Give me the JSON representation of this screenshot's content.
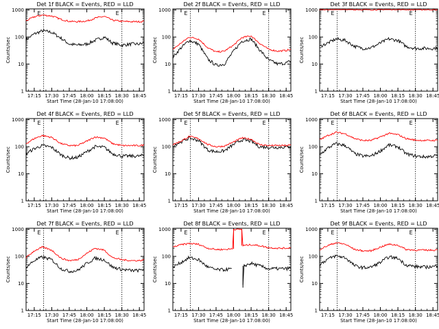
{
  "colors": {
    "events": "#000000",
    "lld": "#ff0000",
    "marker": "#000000"
  },
  "chart_data": [
    {
      "type": "line",
      "title": "Det 1f BLACK = Events, RED = LLD",
      "xlabel": "Start Time (28-Jan-10 17:08:00)",
      "ylabel": "Counts/sec",
      "yscale": "log",
      "ylim": [
        1,
        1000
      ],
      "x_ticks": [
        "17:15",
        "17:30",
        "17:45",
        "18:00",
        "18:15",
        "18:30",
        "18:45"
      ],
      "y_ticks": [
        "1",
        "10",
        "100",
        "1000"
      ],
      "markers": [
        "E",
        "E"
      ],
      "series": [
        {
          "name": "BLACK = Events",
          "color": "#000000",
          "x": [
            "17:08",
            "17:15",
            "17:22",
            "17:30",
            "17:38",
            "17:45",
            "17:52",
            "18:00",
            "18:07",
            "18:15",
            "18:22",
            "18:30",
            "18:38",
            "18:45",
            "18:49"
          ],
          "values": [
            80,
            130,
            170,
            150,
            90,
            55,
            50,
            55,
            75,
            100,
            60,
            50,
            55,
            55,
            60
          ]
        },
        {
          "name": "RED = LLD",
          "color": "#ff0000",
          "x": [
            "17:08",
            "17:15",
            "17:22",
            "17:30",
            "17:38",
            "17:45",
            "17:52",
            "18:00",
            "18:07",
            "18:15",
            "18:22",
            "18:30",
            "18:38",
            "18:45",
            "18:49"
          ],
          "values": [
            400,
            560,
            650,
            600,
            450,
            380,
            370,
            390,
            500,
            580,
            420,
            380,
            370,
            370,
            380
          ]
        }
      ]
    },
    {
      "type": "line",
      "title": "Det 2f BLACK = Events, RED = LLD",
      "xlabel": "Start Time (28-Jan-10 17:08:00)",
      "ylabel": "Counts/sec",
      "yscale": "log",
      "ylim": [
        1,
        1000
      ],
      "x_ticks": [
        "17:15",
        "17:30",
        "17:45",
        "18:00",
        "18:15",
        "18:30",
        "18:45"
      ],
      "y_ticks": [
        "1",
        "10",
        "100",
        "1000"
      ],
      "markers": [
        "E",
        "E"
      ],
      "series": [
        {
          "name": "BLACK = Events",
          "color": "#000000",
          "x": [
            "17:08",
            "17:15",
            "17:22",
            "17:30",
            "17:38",
            "17:45",
            "17:52",
            "18:00",
            "18:07",
            "18:15",
            "18:22",
            "18:30",
            "18:38",
            "18:45",
            "18:49"
          ],
          "values": [
            18,
            40,
            75,
            55,
            15,
            9,
            10,
            30,
            70,
            85,
            35,
            14,
            10,
            11,
            13
          ]
        },
        {
          "name": "RED = LLD",
          "color": "#ff0000",
          "x": [
            "17:08",
            "17:15",
            "17:22",
            "17:30",
            "17:38",
            "17:45",
            "17:52",
            "18:00",
            "18:07",
            "18:15",
            "18:22",
            "18:30",
            "18:38",
            "18:45",
            "18:49"
          ],
          "values": [
            35,
            60,
            100,
            85,
            40,
            28,
            30,
            50,
            95,
            110,
            60,
            35,
            30,
            32,
            35
          ]
        }
      ]
    },
    {
      "type": "line",
      "title": "Det 3f BLACK = Events, RED = LLD",
      "xlabel": "Start Time (28-Jan-10 17:08:00)",
      "ylabel": "Counts/sec",
      "yscale": "log",
      "ylim": [
        1,
        1000
      ],
      "x_ticks": [
        "17:15",
        "17:30",
        "17:45",
        "18:00",
        "18:15",
        "18:30",
        "18:45"
      ],
      "y_ticks": [
        "1",
        "10",
        "100",
        "1000"
      ],
      "markers": [
        "E",
        "E"
      ],
      "series": [
        {
          "name": "BLACK = Events",
          "color": "#000000",
          "x": [
            "17:08",
            "17:15",
            "17:22",
            "17:30",
            "17:38",
            "17:45",
            "17:52",
            "18:00",
            "18:07",
            "18:15",
            "18:22",
            "18:30",
            "18:38",
            "18:45",
            "18:49"
          ],
          "values": [
            45,
            60,
            85,
            75,
            45,
            38,
            40,
            60,
            85,
            75,
            45,
            38,
            38,
            38,
            40
          ]
        },
        {
          "name": "RED = LLD",
          "color": "#ff0000",
          "x": [
            "17:08",
            "17:15",
            "17:22",
            "17:30",
            "17:38",
            "17:45",
            "17:52",
            "18:00",
            "18:07",
            "18:15",
            "18:22",
            "18:30",
            "18:38",
            "18:45",
            "18:49"
          ],
          "values": [
            1050,
            1060,
            1080,
            1070,
            1050,
            1040,
            1040,
            1050,
            1070,
            1070,
            1050,
            1040,
            1040,
            1040,
            1040
          ]
        }
      ]
    },
    {
      "type": "line",
      "title": "Det 4f BLACK = Events, RED = LLD",
      "xlabel": "Start Time (28-Jan-10 17:08:00)",
      "ylabel": "Counts/sec",
      "yscale": "log",
      "ylim": [
        1,
        1000
      ],
      "x_ticks": [
        "17:15",
        "17:30",
        "17:45",
        "18:00",
        "18:15",
        "18:30",
        "18:45"
      ],
      "y_ticks": [
        "1",
        "10",
        "100",
        "1000"
      ],
      "markers": [
        "E",
        "E"
      ],
      "series": [
        {
          "name": "BLACK = Events",
          "color": "#000000",
          "x": [
            "17:08",
            "17:15",
            "17:22",
            "17:30",
            "17:38",
            "17:45",
            "17:52",
            "18:00",
            "18:07",
            "18:15",
            "18:22",
            "18:30",
            "18:38",
            "18:45",
            "18:49"
          ],
          "values": [
            55,
            85,
            110,
            95,
            50,
            38,
            40,
            65,
            100,
            95,
            55,
            45,
            45,
            45,
            48
          ]
        },
        {
          "name": "RED = LLD",
          "color": "#ff0000",
          "x": [
            "17:08",
            "17:15",
            "17:22",
            "17:30",
            "17:38",
            "17:45",
            "17:52",
            "18:00",
            "18:07",
            "18:15",
            "18:22",
            "18:30",
            "18:38",
            "18:45",
            "18:49"
          ],
          "values": [
            130,
            200,
            260,
            220,
            130,
            110,
            110,
            160,
            230,
            210,
            130,
            110,
            110,
            110,
            115
          ]
        }
      ]
    },
    {
      "type": "line",
      "title": "Det 5f BLACK = Events, RED = LLD",
      "xlabel": "Start Time (28-Jan-10 17:08:00)",
      "ylabel": "Counts/sec",
      "yscale": "log",
      "ylim": [
        1,
        1000
      ],
      "x_ticks": [
        "17:15",
        "17:30",
        "17:45",
        "18:00",
        "18:15",
        "18:30",
        "18:45"
      ],
      "y_ticks": [
        "1",
        "10",
        "100",
        "1000"
      ],
      "markers": [
        "E",
        "E"
      ],
      "series": [
        {
          "name": "BLACK = Events",
          "color": "#000000",
          "x": [
            "17:08",
            "17:15",
            "17:22",
            "17:30",
            "17:38",
            "17:45",
            "17:52",
            "18:00",
            "18:07",
            "18:15",
            "18:22",
            "18:30",
            "18:38",
            "18:45",
            "18:49"
          ],
          "values": [
            110,
            150,
            210,
            170,
            75,
            65,
            70,
            120,
            180,
            160,
            100,
            95,
            95,
            98,
            100
          ]
        },
        {
          "name": "RED = LLD",
          "color": "#ff0000",
          "x": [
            "17:08",
            "17:15",
            "17:22",
            "17:30",
            "17:38",
            "17:45",
            "17:52",
            "18:00",
            "18:07",
            "18:15",
            "18:22",
            "18:30",
            "18:38",
            "18:45",
            "18:49"
          ],
          "values": [
            120,
            160,
            240,
            200,
            120,
            100,
            105,
            150,
            210,
            190,
            120,
            110,
            110,
            110,
            115
          ]
        }
      ]
    },
    {
      "type": "line",
      "title": "Det 6f BLACK = Events, RED = LLD",
      "xlabel": "Start Time (28-Jan-10 17:08:00)",
      "ylabel": "Counts/sec",
      "yscale": "log",
      "ylim": [
        1,
        1000
      ],
      "x_ticks": [
        "17:15",
        "17:30",
        "17:45",
        "18:00",
        "18:15",
        "18:30",
        "18:45"
      ],
      "y_ticks": [
        "1",
        "10",
        "100",
        "1000"
      ],
      "markers": [
        "E",
        "E"
      ],
      "series": [
        {
          "name": "BLACK = Events",
          "color": "#000000",
          "x": [
            "17:08",
            "17:15",
            "17:22",
            "17:30",
            "17:38",
            "17:45",
            "17:52",
            "18:00",
            "18:07",
            "18:15",
            "18:22",
            "18:30",
            "18:38",
            "18:45",
            "18:49"
          ],
          "values": [
            50,
            90,
            130,
            110,
            55,
            45,
            45,
            70,
            115,
            100,
            55,
            45,
            42,
            45,
            48
          ]
        },
        {
          "name": "RED = LLD",
          "color": "#ff0000",
          "x": [
            "17:08",
            "17:15",
            "17:22",
            "17:30",
            "17:38",
            "17:45",
            "17:52",
            "18:00",
            "18:07",
            "18:15",
            "18:22",
            "18:30",
            "18:38",
            "18:45",
            "18:49"
          ],
          "values": [
            180,
            260,
            340,
            300,
            200,
            170,
            170,
            230,
            310,
            280,
            200,
            175,
            170,
            170,
            175
          ]
        }
      ]
    },
    {
      "type": "line",
      "title": "Det 7f BLACK = Events, RED = LLD",
      "xlabel": "Start Time (28-Jan-10 17:08:00)",
      "ylabel": "Counts/sec",
      "yscale": "log",
      "ylim": [
        1,
        1000
      ],
      "x_ticks": [
        "17:15",
        "17:30",
        "17:45",
        "18:00",
        "18:15",
        "18:30",
        "18:45"
      ],
      "y_ticks": [
        "1",
        "10",
        "100",
        "1000"
      ],
      "markers": [
        "E",
        "E"
      ],
      "series": [
        {
          "name": "BLACK = Events",
          "color": "#000000",
          "x": [
            "17:08",
            "17:15",
            "17:22",
            "17:30",
            "17:38",
            "17:45",
            "17:52",
            "18:00",
            "18:07",
            "18:15",
            "18:22",
            "18:30",
            "18:38",
            "18:45",
            "18:49"
          ],
          "values": [
            40,
            70,
            95,
            75,
            35,
            28,
            30,
            55,
            85,
            75,
            40,
            33,
            30,
            30,
            35
          ]
        },
        {
          "name": "RED = LLD",
          "color": "#ff0000",
          "x": [
            "17:08",
            "17:15",
            "17:22",
            "17:30",
            "17:38",
            "17:45",
            "17:52",
            "18:00",
            "18:07",
            "18:15",
            "18:22",
            "18:30",
            "18:38",
            "18:45",
            "18:49"
          ],
          "values": [
            90,
            160,
            220,
            170,
            85,
            70,
            75,
            130,
            200,
            170,
            90,
            75,
            70,
            70,
            75
          ]
        }
      ]
    },
    {
      "type": "line",
      "title": "Det 8f BLACK = Events, RED = LLD",
      "xlabel": "Start Time (28-Jan-10 17:08:00)",
      "ylabel": "Counts/sec",
      "yscale": "log",
      "ylim": [
        1,
        1000
      ],
      "x_ticks": [
        "17:15",
        "17:30",
        "17:45",
        "18:00",
        "18:15",
        "18:30",
        "18:45"
      ],
      "y_ticks": [
        "1",
        "10",
        "100",
        "1000"
      ],
      "markers": [
        "E",
        "E"
      ],
      "series": [
        {
          "name": "BLACK = Events",
          "color": "#000000",
          "x": [
            "17:08",
            "17:15",
            "17:22",
            "17:30",
            "17:38",
            "17:45",
            "17:52",
            "17:59",
            "18:00",
            "18:07",
            "18:08",
            "18:09",
            "18:15",
            "18:22",
            "18:30",
            "18:38",
            "18:45",
            "18:49"
          ],
          "values": [
            40,
            60,
            90,
            75,
            40,
            32,
            32,
            35,
            null,
            null,
            8,
            45,
            55,
            45,
            35,
            35,
            35,
            38
          ]
        },
        {
          "name": "RED = LLD",
          "color": "#ff0000",
          "x": [
            "17:08",
            "17:15",
            "17:22",
            "17:30",
            "17:38",
            "17:45",
            "17:52",
            "17:59",
            "18:00",
            "18:01",
            "18:06",
            "18:07",
            "18:08",
            "18:15",
            "18:22",
            "18:30",
            "18:38",
            "18:45",
            "18:49"
          ],
          "values": [
            220,
            270,
            300,
            280,
            200,
            180,
            180,
            190,
            1000,
            1000,
            1000,
            1000,
            250,
            270,
            250,
            210,
            200,
            200,
            210
          ]
        }
      ]
    },
    {
      "type": "line",
      "title": "Det 9f BLACK = Events, RED = LLD",
      "xlabel": "Start Time (28-Jan-10 17:08:00)",
      "ylabel": "Counts/sec",
      "yscale": "log",
      "ylim": [
        1,
        1000
      ],
      "x_ticks": [
        "17:15",
        "17:30",
        "17:45",
        "18:00",
        "18:15",
        "18:30",
        "18:45"
      ],
      "y_ticks": [
        "1",
        "10",
        "100",
        "1000"
      ],
      "markers": [
        "E",
        "E"
      ],
      "series": [
        {
          "name": "BLACK = Events",
          "color": "#000000",
          "x": [
            "17:08",
            "17:15",
            "17:22",
            "17:30",
            "17:38",
            "17:45",
            "17:52",
            "18:00",
            "18:07",
            "18:15",
            "18:22",
            "18:30",
            "18:38",
            "18:45",
            "18:49"
          ],
          "values": [
            50,
            80,
            105,
            90,
            45,
            38,
            40,
            60,
            95,
            85,
            48,
            42,
            40,
            42,
            45
          ]
        },
        {
          "name": "RED = LLD",
          "color": "#ff0000",
          "x": [
            "17:08",
            "17:15",
            "17:22",
            "17:30",
            "17:38",
            "17:45",
            "17:52",
            "18:00",
            "18:07",
            "18:15",
            "18:22",
            "18:30",
            "18:38",
            "18:45",
            "18:49"
          ],
          "values": [
            180,
            250,
            320,
            280,
            180,
            160,
            160,
            220,
            280,
            260,
            180,
            170,
            170,
            170,
            175
          ]
        }
      ]
    }
  ]
}
